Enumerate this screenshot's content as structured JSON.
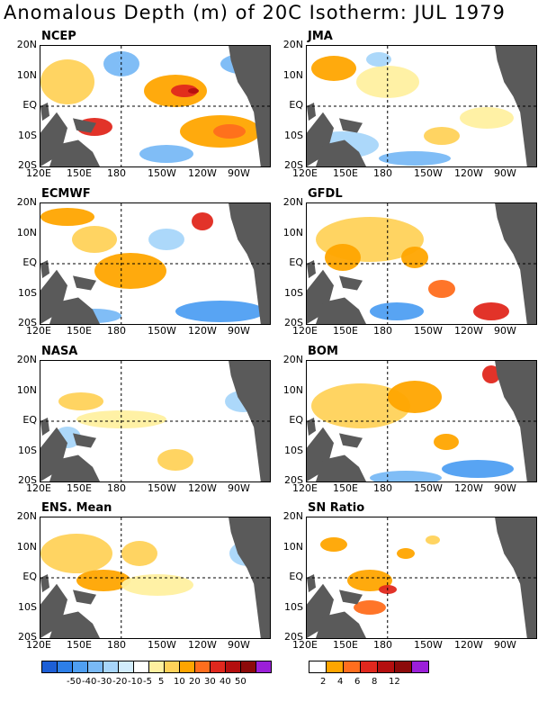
{
  "title": "Anomalous Depth (m) of 20C Isotherm: JUL 1979",
  "y_ticks": [
    "20N",
    "10N",
    "EQ",
    "10S",
    "20S"
  ],
  "x_ticks": [
    "120E",
    "150E",
    "180",
    "150W",
    "120W",
    "90W"
  ],
  "panels": [
    {
      "name": "NCEP"
    },
    {
      "name": "JMA"
    },
    {
      "name": "ECMWF"
    },
    {
      "name": "GFDL"
    },
    {
      "name": "NASA"
    },
    {
      "name": "BOM"
    },
    {
      "name": "ENS. Mean"
    },
    {
      "name": "SN Ratio"
    }
  ],
  "legend_anomaly": {
    "labels": [
      "-50",
      "-40",
      "-30",
      "-20",
      "-10",
      "-5",
      "5",
      "10",
      "20",
      "30",
      "40",
      "50"
    ],
    "colors": [
      "#1d5fd6",
      "#2d7fe8",
      "#4f9ff2",
      "#79b9f5",
      "#a8d6fa",
      "#d2ecfc",
      "#ffffff",
      "#fff0a0",
      "#ffd25a",
      "#ffa500",
      "#ff6e1e",
      "#e0281e",
      "#b40f0f",
      "#8c0a0a",
      "#9b1fd8"
    ]
  },
  "legend_ratio": {
    "labels": [
      "2",
      "4",
      "6",
      "8",
      "12"
    ],
    "colors": [
      "#ffffff",
      "#ffa500",
      "#ff6e1e",
      "#e0281e",
      "#b40f0f",
      "#8c0a0a",
      "#9b1fd8"
    ]
  },
  "colors": {
    "land": "#5a5a5a"
  }
}
